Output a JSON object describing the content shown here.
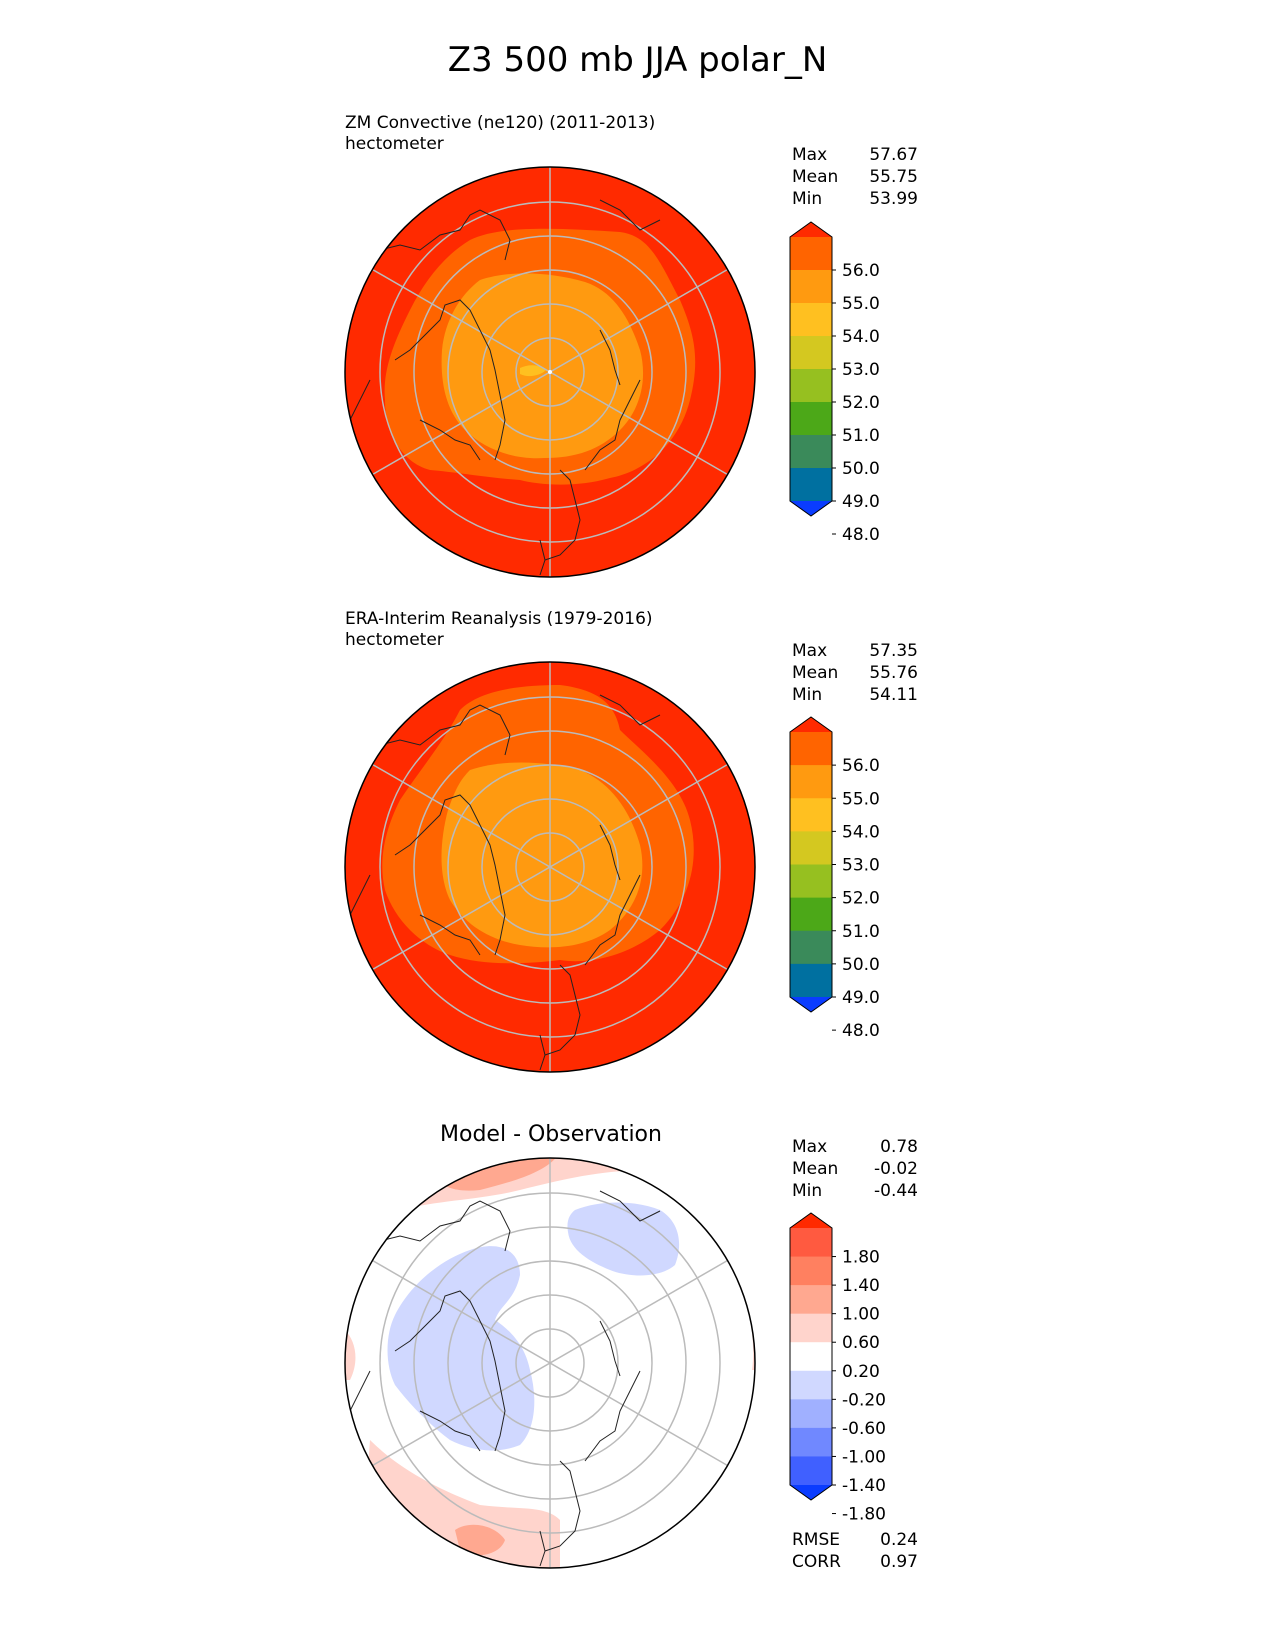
{
  "title": "Z3 500 mb JJA polar_N",
  "panels": [
    {
      "id": "test",
      "title_line1": "ZM Convective (ne120) (2011-2013)",
      "title_line2": "hectometer",
      "stats": [
        {
          "label": "Max",
          "value": "57.67"
        },
        {
          "label": "Mean",
          "value": "55.75"
        },
        {
          "label": "Min",
          "value": "53.99"
        }
      ]
    },
    {
      "id": "ref",
      "title_line1": "ERA-Interim Reanalysis (1979-2016)",
      "title_line2": "hectometer",
      "stats": [
        {
          "label": "Max",
          "value": "57.35"
        },
        {
          "label": "Mean",
          "value": "55.76"
        },
        {
          "label": "Min",
          "value": "54.11"
        }
      ]
    },
    {
      "id": "diff",
      "title_line1": "Model - Observation",
      "stats": [
        {
          "label": "Max",
          "value": "0.78"
        },
        {
          "label": "Mean",
          "value": "-0.02"
        },
        {
          "label": "Min",
          "value": "-0.44"
        }
      ],
      "metrics": [
        {
          "label": "RMSE",
          "value": "0.24"
        },
        {
          "label": "CORR",
          "value": "0.97"
        }
      ]
    }
  ],
  "chart_data": [
    {
      "type": "heatmap",
      "title": "ZM Convective (ne120) (2011-2013)",
      "units": "hectometer",
      "projection": "north polar stereographic",
      "colorbar": {
        "levels": [
          "56.0",
          "55.0",
          "54.0",
          "53.0",
          "52.0",
          "51.0",
          "50.0",
          "49.0",
          "48.0"
        ],
        "colors": [
          "#ff2a00",
          "#ff6400",
          "#ff9a10",
          "#ffc020",
          "#d4c820",
          "#96c020",
          "#4ca818",
          "#3a8a5a",
          "#0070a0",
          "#0a3cff"
        ],
        "extend": "both"
      },
      "stats": {
        "max": 57.67,
        "mean": 55.75,
        "min": 53.99
      }
    },
    {
      "type": "heatmap",
      "title": "ERA-Interim Reanalysis (1979-2016)",
      "units": "hectometer",
      "projection": "north polar stereographic",
      "colorbar": {
        "levels": [
          "56.0",
          "55.0",
          "54.0",
          "53.0",
          "52.0",
          "51.0",
          "50.0",
          "49.0",
          "48.0"
        ],
        "colors": [
          "#ff2a00",
          "#ff6400",
          "#ff9a10",
          "#ffc020",
          "#d4c820",
          "#96c020",
          "#4ca818",
          "#3a8a5a",
          "#0070a0",
          "#0a3cff"
        ],
        "extend": "both"
      },
      "stats": {
        "max": 57.35,
        "mean": 55.76,
        "min": 54.11
      }
    },
    {
      "type": "heatmap",
      "title": "Model - Observation",
      "projection": "north polar stereographic",
      "colorbar": {
        "levels": [
          "1.80",
          "1.40",
          "1.00",
          "0.60",
          "0.20",
          "-0.20",
          "-0.60",
          "-1.00",
          "-1.40",
          "-1.80"
        ],
        "colors": [
          "#ff2a00",
          "#ff5a40",
          "#ff8060",
          "#ffa890",
          "#ffd4cc",
          "#ffffff",
          "#d0d8ff",
          "#a0b0ff",
          "#7088ff",
          "#4060ff",
          "#0a3cff"
        ],
        "extend": "both"
      },
      "stats": {
        "max": 0.78,
        "mean": -0.02,
        "min": -0.44,
        "rmse": 0.24,
        "corr": 0.97
      }
    }
  ]
}
